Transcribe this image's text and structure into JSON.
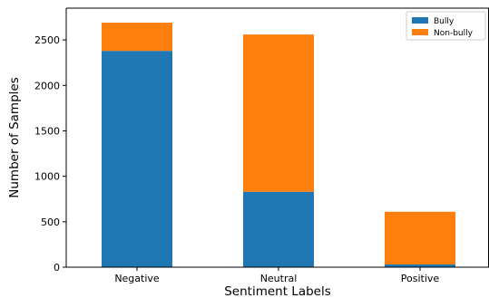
{
  "chart_data": {
    "type": "bar",
    "stacked": true,
    "categories": [
      "Negative",
      "Neutral",
      "Positive"
    ],
    "series": [
      {
        "name": "Bully",
        "color": "#1f77b4",
        "values": [
          2380,
          830,
          30
        ]
      },
      {
        "name": "Non-bully",
        "color": "#ff7f0e",
        "values": [
          310,
          1730,
          580
        ]
      }
    ],
    "xlabel": "Sentiment Labels",
    "ylabel": "Number of Samples",
    "ylim": [
      0,
      2850
    ],
    "yticks": [
      0,
      500,
      1000,
      1500,
      2000,
      2500
    ],
    "grid": false,
    "legend_position": "top-right"
  }
}
